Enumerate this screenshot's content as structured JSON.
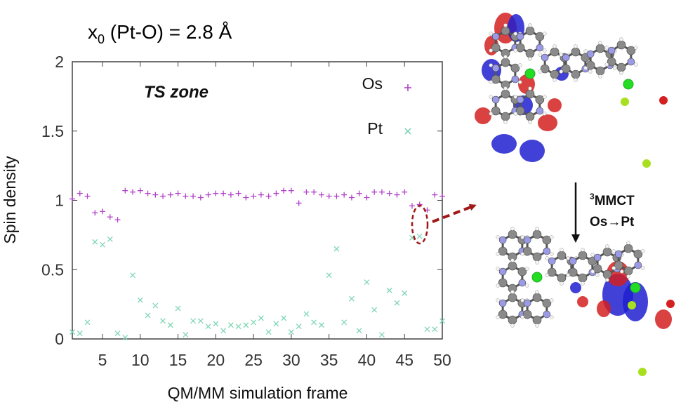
{
  "header": {
    "title_base": "x",
    "title_sub": "0",
    "title_rest": " (Pt-O) = 2.8 Å"
  },
  "chart_data": {
    "type": "scatter",
    "xlabel": "QM/MM simulation frame",
    "ylabel": "Spin density",
    "xlim": [
      1,
      50
    ],
    "ylim": [
      0,
      2
    ],
    "x_ticks": [
      5,
      10,
      15,
      20,
      25,
      30,
      35,
      40,
      45,
      50
    ],
    "y_ticks": [
      0,
      0.5,
      1,
      1.5,
      2
    ],
    "y_tick_labels": [
      "0",
      "0.5",
      "1",
      "1.5",
      "2"
    ],
    "grid": false,
    "annotation": "TS zone",
    "legend_position": "top-right",
    "series": [
      {
        "name": "Os",
        "marker": "+",
        "color": "#b040c8",
        "x": [
          1,
          2,
          3,
          4,
          5,
          6,
          7,
          8,
          9,
          10,
          11,
          12,
          13,
          14,
          15,
          16,
          17,
          18,
          19,
          20,
          21,
          22,
          23,
          24,
          25,
          26,
          27,
          28,
          29,
          30,
          31,
          32,
          33,
          34,
          35,
          36,
          37,
          38,
          39,
          40,
          41,
          42,
          43,
          44,
          45,
          46,
          47,
          48,
          49,
          50
        ],
        "y": [
          1.01,
          1.05,
          1.03,
          0.91,
          0.92,
          0.88,
          0.86,
          1.07,
          1.06,
          1.07,
          1.05,
          1.04,
          1.03,
          1.04,
          1.05,
          1.03,
          1.03,
          1.02,
          1.04,
          1.05,
          1.05,
          1.04,
          1.05,
          1.02,
          1.03,
          1.04,
          1.03,
          1.05,
          1.07,
          1.07,
          0.98,
          1.06,
          1.06,
          1.04,
          1.03,
          1.03,
          1.04,
          1.02,
          1.05,
          1.02,
          1.06,
          1.06,
          1.05,
          1.04,
          1.06,
          0.96,
          0.97,
          0.93,
          1.04,
          1.03
        ]
      },
      {
        "name": "Pt",
        "marker": "x",
        "color": "#7ed6b4",
        "x": [
          1,
          2,
          3,
          4,
          5,
          6,
          7,
          8,
          9,
          10,
          11,
          12,
          13,
          14,
          15,
          16,
          17,
          18,
          19,
          20,
          21,
          22,
          23,
          24,
          25,
          26,
          27,
          28,
          29,
          30,
          31,
          32,
          33,
          34,
          35,
          36,
          37,
          38,
          39,
          40,
          41,
          42,
          43,
          44,
          45,
          46,
          47,
          48,
          49,
          50
        ],
        "y": [
          0.05,
          0.04,
          0.12,
          0.7,
          0.68,
          0.72,
          0.04,
          0.01,
          0.46,
          0.28,
          0.17,
          0.24,
          0.13,
          0.1,
          0.22,
          0.03,
          0.13,
          0.13,
          0.09,
          0.11,
          0.06,
          0.1,
          0.09,
          0.1,
          0.12,
          0.15,
          0.05,
          0.11,
          0.15,
          0.05,
          0.09,
          0.18,
          0.12,
          0.1,
          0.46,
          0.65,
          0.12,
          0.29,
          0.06,
          0.41,
          0.21,
          0.03,
          0.35,
          0.26,
          0.33,
          0.73,
          0.74,
          0.07,
          0.07,
          0.13
        ]
      }
    ]
  },
  "annotations": {
    "transition_line1_sup": "3",
    "transition_line1_text": "MMCT",
    "transition_line2": "Os→Pt"
  },
  "colors": {
    "axis": "#444444",
    "os": "#b040c8",
    "pt": "#7ed6b4",
    "highlight": "#a01818",
    "orbital_red": "#d42020",
    "orbital_blue": "#2020d0",
    "atom_carbon": "#8a8a8a",
    "atom_nitrogen": "#9a9ae6",
    "atom_metal": "#22dd22",
    "atom_chlorine": "#a8e020"
  }
}
